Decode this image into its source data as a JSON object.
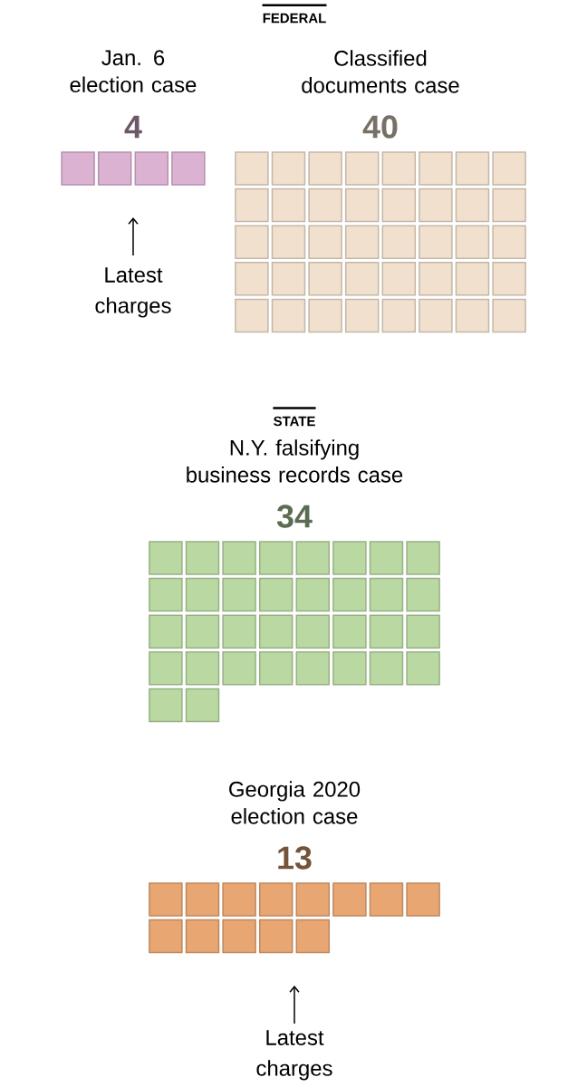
{
  "chart_data": {
    "type": "other",
    "categories": [
      "Jan. 6 election case",
      "Classified documents case",
      "N.Y. falsifying business records case",
      "Georgia 2020 election case"
    ],
    "values": [
      4,
      40,
      34,
      13
    ],
    "colors": [
      "#dcb2d2",
      "#f0e0cd",
      "#b9d8a2",
      "#e8a673"
    ],
    "data_labels": true,
    "annotations": [
      "FEDERAL",
      "STATE",
      "Latest charges",
      "Latest charges"
    ]
  }
}
